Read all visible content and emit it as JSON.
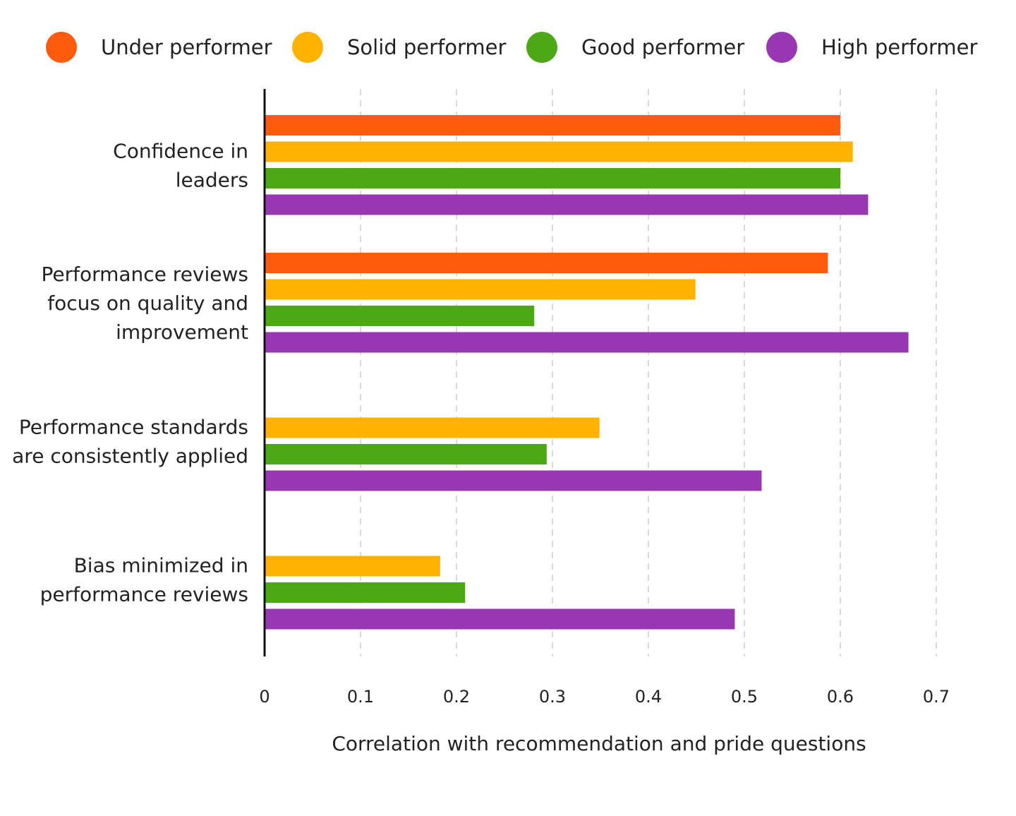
{
  "chart_data": {
    "type": "bar",
    "orientation": "horizontal",
    "categories": [
      [
        "Confidence in",
        "leaders"
      ],
      [
        "Performance reviews",
        "focus on quality and",
        "improvement"
      ],
      [
        "Performance standards",
        "are consistently applied"
      ],
      [
        "Bias minimized in",
        "performance reviews"
      ]
    ],
    "series": [
      {
        "name": "Under performer",
        "color": "#FF5B0F",
        "values": [
          0.6,
          0.587,
          0.001,
          0.001
        ]
      },
      {
        "name": "Solid performer",
        "color": "#FFB300",
        "values": [
          0.613,
          0.449,
          0.349,
          0.183
        ]
      },
      {
        "name": "Good performer",
        "color": "#4DA815",
        "values": [
          0.6,
          0.281,
          0.294,
          0.209
        ]
      },
      {
        "name": "High performer",
        "color": "#9936B2",
        "values": [
          0.629,
          0.671,
          0.518,
          0.49
        ]
      }
    ],
    "xlim": [
      0,
      0.7
    ],
    "xticks": [
      "0",
      "0.1",
      "0.2",
      "0.3",
      "0.4",
      "0.5",
      "0.6",
      "0.7"
    ],
    "xlabel": "Correlation with recommendation and pride questions",
    "ylabel": "",
    "title": "",
    "grid": "vertical dashed",
    "legend_position": "top"
  }
}
